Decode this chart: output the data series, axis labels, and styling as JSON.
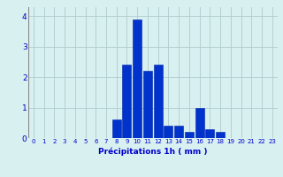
{
  "hours": [
    0,
    1,
    2,
    3,
    4,
    5,
    6,
    7,
    8,
    9,
    10,
    11,
    12,
    13,
    14,
    15,
    16,
    17,
    18,
    19,
    20,
    21,
    22,
    23
  ],
  "values": [
    0,
    0,
    0,
    0,
    0,
    0,
    0,
    0,
    0.6,
    2.4,
    3.9,
    2.2,
    2.4,
    0.4,
    0.4,
    0.2,
    1.0,
    0.3,
    0.2,
    0,
    0,
    0,
    0,
    0
  ],
  "bar_color": "#0033cc",
  "bar_edge_color": "#0022aa",
  "background_color": "#d8f0f0",
  "grid_color": "#b0cccc",
  "xlabel": "Précipitations 1h ( mm )",
  "xlabel_color": "#0000cc",
  "tick_color": "#0000cc",
  "ylim": [
    0,
    4.3
  ],
  "yticks": [
    0,
    1,
    2,
    3,
    4
  ],
  "xlim": [
    -0.5,
    23.5
  ],
  "bar_width": 0.85
}
